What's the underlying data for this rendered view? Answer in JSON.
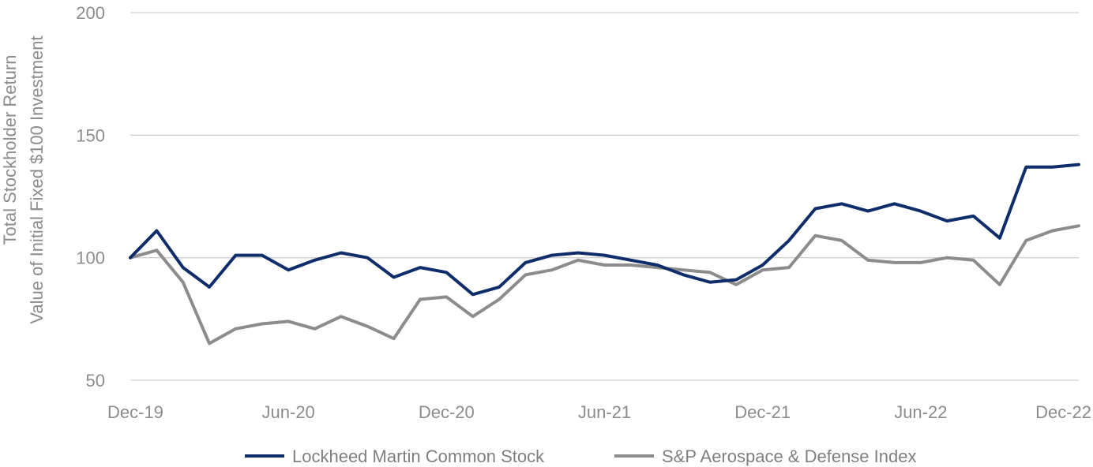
{
  "chart_data": {
    "type": "line",
    "title": "",
    "ylabel_line1": "Total Stockholder Return",
    "ylabel_line2": "Value of Initial Fixed $100 Investment",
    "ylim": [
      50,
      200
    ],
    "yticks": [
      50,
      100,
      150,
      200
    ],
    "x_tick_labels": [
      "Dec-19",
      "Jun-20",
      "Dec-20",
      "Jun-21",
      "Dec-21",
      "Jun-22",
      "Dec-22"
    ],
    "x_tick_indices": [
      0,
      6,
      12,
      18,
      24,
      30,
      36
    ],
    "x": [
      "Dec-19",
      "Jan-20",
      "Feb-20",
      "Mar-20",
      "Apr-20",
      "May-20",
      "Jun-20",
      "Jul-20",
      "Aug-20",
      "Sep-20",
      "Oct-20",
      "Nov-20",
      "Dec-20",
      "Jan-21",
      "Feb-21",
      "Mar-21",
      "Apr-21",
      "May-21",
      "Jun-21",
      "Jul-21",
      "Aug-21",
      "Sep-21",
      "Oct-21",
      "Nov-21",
      "Dec-21",
      "Jan-22",
      "Feb-22",
      "Mar-22",
      "Apr-22",
      "May-22",
      "Jun-22",
      "Jul-22",
      "Aug-22",
      "Sep-22",
      "Oct-22",
      "Nov-22",
      "Dec-22"
    ],
    "grid": true,
    "legend_position": "bottom",
    "series": [
      {
        "name": "Lockheed Martin Common Stock",
        "color": "#0f2d6b",
        "values": [
          100,
          111,
          96,
          88,
          101,
          101,
          95,
          99,
          102,
          100,
          92,
          96,
          94,
          85,
          88,
          98,
          101,
          102,
          101,
          99,
          97,
          93,
          90,
          91,
          97,
          107,
          120,
          122,
          119,
          122,
          119,
          115,
          117,
          108,
          137,
          137,
          138
        ]
      },
      {
        "name": "S&P Aerospace & Defense Index",
        "color": "#8c8c8c",
        "values": [
          100,
          103,
          90,
          65,
          71,
          73,
          74,
          71,
          76,
          72,
          67,
          83,
          84,
          76,
          83,
          93,
          95,
          99,
          97,
          97,
          96,
          95,
          94,
          89,
          95,
          96,
          109,
          107,
          99,
          98,
          98,
          100,
          99,
          89,
          107,
          111,
          113
        ]
      }
    ]
  }
}
